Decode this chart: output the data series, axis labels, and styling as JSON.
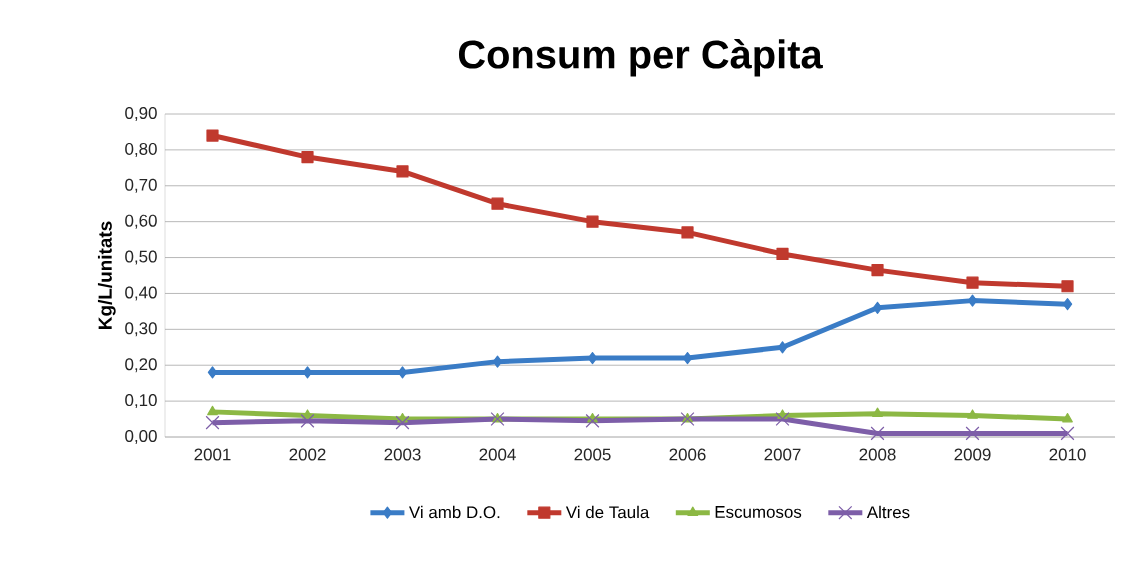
{
  "chart_data": {
    "type": "line",
    "title": "Consum per Càpita",
    "ylabel": "Kg/L/unitats",
    "categories": [
      "2001",
      "2002",
      "2003",
      "2004",
      "2005",
      "2006",
      "2007",
      "2008",
      "2009",
      "2010"
    ],
    "series": [
      {
        "name": "Vi amb D.O.",
        "color": "#3a7cc6",
        "marker": "diamond",
        "values": [
          0.18,
          0.18,
          0.18,
          0.21,
          0.22,
          0.22,
          0.25,
          0.36,
          0.38,
          0.37
        ]
      },
      {
        "name": "Vi de Taula",
        "color": "#c0392e",
        "marker": "square",
        "values": [
          0.84,
          0.78,
          0.74,
          0.65,
          0.6,
          0.57,
          0.51,
          0.465,
          0.43,
          0.42
        ]
      },
      {
        "name": "Escumosos",
        "color": "#8cb844",
        "marker": "triangle",
        "values": [
          0.07,
          0.06,
          0.05,
          0.05,
          0.05,
          0.05,
          0.06,
          0.065,
          0.06,
          0.05
        ]
      },
      {
        "name": "Altres",
        "color": "#7d5ea8",
        "marker": "cross",
        "values": [
          0.04,
          0.045,
          0.04,
          0.05,
          0.045,
          0.05,
          0.05,
          0.01,
          0.01,
          0.01
        ]
      }
    ],
    "ylim": [
      0,
      0.9
    ],
    "yticks": [
      {
        "value": 0,
        "label": "0,00"
      },
      {
        "value": 0.1,
        "label": "0,10"
      },
      {
        "value": 0.2,
        "label": "0,20"
      },
      {
        "value": 0.3,
        "label": "0,30"
      },
      {
        "value": 0.4,
        "label": "0,40"
      },
      {
        "value": 0.5,
        "label": "0,50"
      },
      {
        "value": 0.6,
        "label": "0,60"
      },
      {
        "value": 0.7,
        "label": "0,70"
      },
      {
        "value": 0.8,
        "label": "0,80"
      },
      {
        "value": 0.9,
        "label": "0,90"
      }
    ],
    "grid": "y",
    "legend": "bottom",
    "line_style": "solid"
  }
}
